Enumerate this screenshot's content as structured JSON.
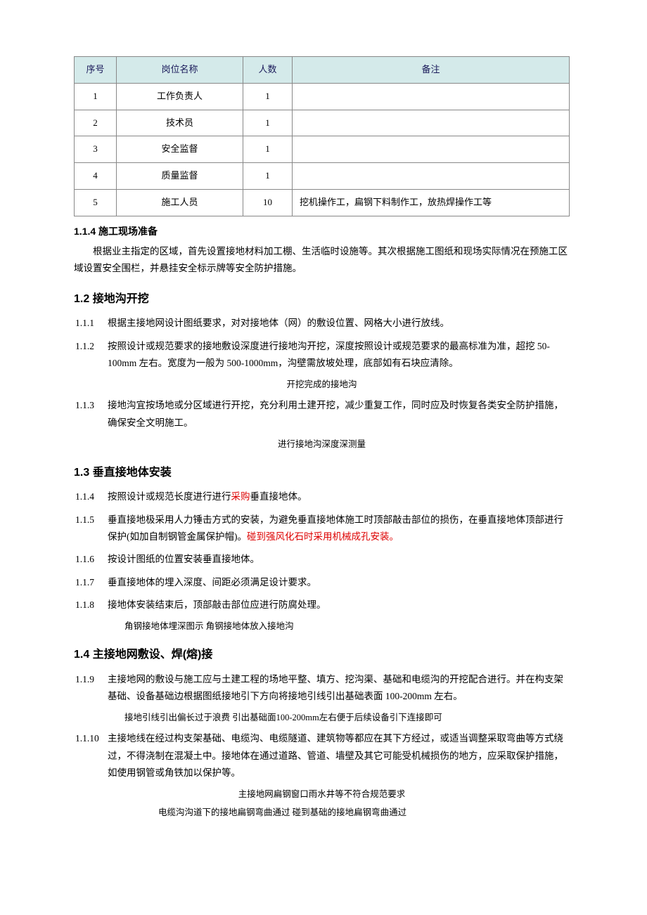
{
  "table": {
    "headers": [
      "序号",
      "岗位名称",
      "人数",
      "备注"
    ],
    "rows": [
      {
        "seq": "1",
        "role": "工作负责人",
        "count": "1",
        "remark": ""
      },
      {
        "seq": "2",
        "role": "技术员",
        "count": "1",
        "remark": ""
      },
      {
        "seq": "3",
        "role": "安全监督",
        "count": "1",
        "remark": ""
      },
      {
        "seq": "4",
        "role": "质量监督",
        "count": "1",
        "remark": ""
      },
      {
        "seq": "5",
        "role": "施工人员",
        "count": "10",
        "remark": "挖机操作工，扁钢下料制作工，放热焊操作工等"
      }
    ],
    "header_bg": "#d4eaea",
    "border_color": "#888888"
  },
  "sections": {
    "s114": {
      "title": "1.1.4  施工现场准备",
      "body": "根据业主指定的区域，首先设置接地材料加工棚、生活临时设施等。其次根据施工图纸和现场实际情况在预施工区域设置安全围栏，并悬挂安全标示牌等安全防护措施。"
    },
    "s12": {
      "title": "1.2  接地沟开挖",
      "items": [
        {
          "num": "1.1.1",
          "text": "根据主接地网设计图纸要求，对对接地体（网）的敷设位置、网格大小进行放线。"
        },
        {
          "num": "1.1.2",
          "text": "按照设计或规范要求的接地敷设深度进行接地沟开挖，深度按照设计或规范要求的最高标准为准，超挖 50-100mm 左右。宽度为一般为 500-1000mm，沟壁需放坡处理，底部如有石块应清除。"
        },
        {
          "num": "1.1.3",
          "text": "接地沟宜按场地或分区域进行开挖，充分利用土建开挖，减少重复工作，同时应及时恢复各类安全防护措施，确保安全文明施工。"
        }
      ],
      "caption1": "开挖完成的接地沟",
      "caption2": "进行接地沟深度深测量"
    },
    "s13": {
      "title": "1.3  垂直接地体安装",
      "items": [
        {
          "num": "1.1.4",
          "pre": "按照设计或规范长度进行进行",
          "red1": "采购",
          "post": "垂直接地体。"
        },
        {
          "num": "1.1.5",
          "pre": "垂直接地极采用人力锤击方式的安装，为避免垂直接地体施工时顶部敲击部位的损伤，在垂直接地体顶部进行保护(如加自制钢管金属保护帽)。",
          "red1": "碰到强风化石时采用机械成孔安装。",
          "post": ""
        },
        {
          "num": "1.1.6",
          "text": "按设计图纸的位置安装垂直接地体。"
        },
        {
          "num": "1.1.7",
          "text": "垂直接地体的埋入深度、间距必须满足设计要求。"
        },
        {
          "num": "1.1.8",
          "text": "接地体安装结束后，顶部敲击部位应进行防腐处理。"
        }
      ],
      "caption": "角钢接地体埋深图示  角钢接地体放入接地沟"
    },
    "s14": {
      "title": "1.4  主接地网敷设、焊(熔)接",
      "items": [
        {
          "num": "1.1.9",
          "text": "主接地网的敷设与施工应与土建工程的场地平整、填方、挖沟渠、基础和电缆沟的开挖配合进行。并在构支架基础、设备基础边根据图纸接地引下方向将接地引线引出基础表面 100-200mm 左右。"
        },
        {
          "num": "1.1.10",
          "text": "主接地线在经过构支架基础、电缆沟、电缆隧道、建筑物等都应在其下方经过，或适当调整采取弯曲等方式绕过，不得浇制在混凝土中。接地体在通过道路、管道、墙壁及其它可能受机械损伤的地方，应采取保护措施，如使用钢管或角铁加以保护等。"
        }
      ],
      "caption1": "接地引线引出偏长过于浪费   引出基础面100-200mm左右便于后续设备引下连接即可",
      "caption2": "主接地网扁钢窗口雨水井等不符合规范要求",
      "caption3": "电缆沟沟道下的接地扁钢弯曲通过  碰到基础的接地扁钢弯曲通过"
    }
  }
}
